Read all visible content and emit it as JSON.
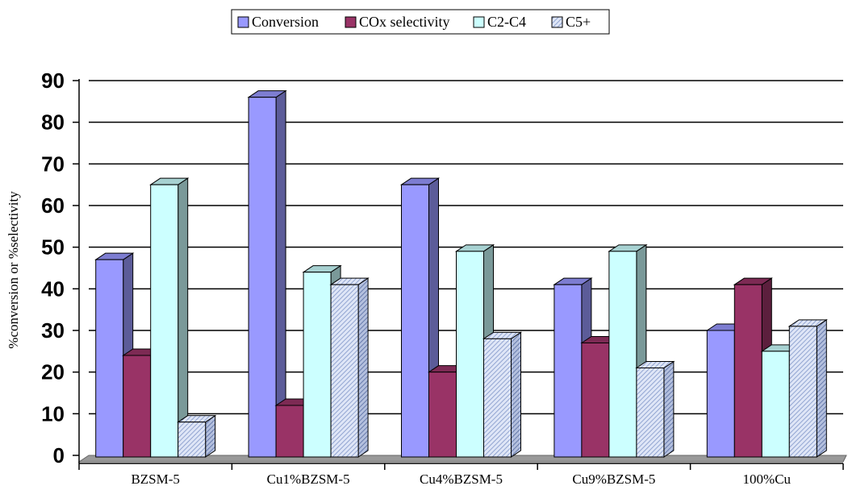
{
  "chart_data": {
    "type": "bar",
    "style": "3d-clustered-column",
    "title": "",
    "xlabel": "",
    "ylabel": "%conversion or %selectivity",
    "ylim": [
      0,
      90
    ],
    "yticks": [
      "0",
      "10",
      "20",
      "30",
      "40",
      "50",
      "60",
      "70",
      "80",
      "90"
    ],
    "grid": true,
    "legend_position": "top",
    "categories": [
      "BZSM-5",
      "Cu1%BZSM-5",
      "Cu4%BZSM-5",
      "Cu9%BZSM-5",
      "100%Cu"
    ],
    "series": [
      {
        "name": "Conversion",
        "values": [
          47,
          86,
          65,
          41,
          30
        ],
        "color": "#9999ff",
        "pattern": "solid"
      },
      {
        "name": "COx selectivity",
        "values": [
          24,
          12,
          20,
          27,
          41
        ],
        "color": "#993366",
        "pattern": "solid"
      },
      {
        "name": "C2-C4",
        "values": [
          65,
          44,
          49,
          49,
          25
        ],
        "color": "#ccffff",
        "pattern": "solid"
      },
      {
        "name": "C5+",
        "values": [
          8,
          41,
          28,
          21,
          31
        ],
        "color": "#c7d4ee",
        "pattern": "diagonal-hatch"
      }
    ]
  }
}
